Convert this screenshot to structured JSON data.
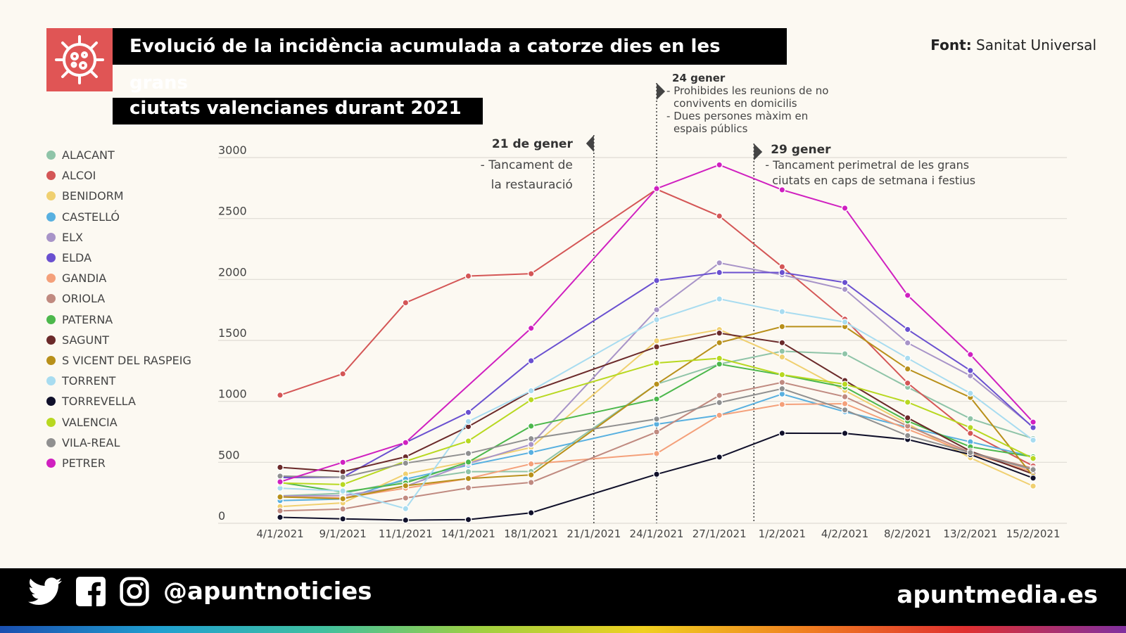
{
  "header": {
    "title_line1": "Evolució de la incidència acumulada a catorze dies en les grans",
    "title_line2": "ciutats valencianes durant 2021",
    "icon": "virus-icon",
    "accent": "#e05555"
  },
  "source": {
    "label": "Font:",
    "value": "Sanitat Universal"
  },
  "footer": {
    "handle": "@apuntnoticies",
    "site": "apuntmedia.es",
    "icons": [
      "twitter-icon",
      "facebook-icon",
      "instagram-icon"
    ]
  },
  "annotations": [
    {
      "date": "21/1/2021",
      "title": "21 de gener",
      "lines": [
        "- Tancament de",
        "la restauració"
      ]
    },
    {
      "date": "24/1/2021",
      "title": "24 gener",
      "lines": [
        "- Prohibides les reunions de no",
        "convivents en domicilis",
        "- Dues persones màxim en",
        "espais públics"
      ]
    },
    {
      "date": "29/1/2021",
      "title": "29 gener",
      "lines": [
        "- Tancament perimetral de les grans",
        "ciutats en caps de setmana i festius"
      ]
    }
  ],
  "chart_data": {
    "type": "line",
    "title": "Evolució de la incidència acumulada a catorze dies en les grans ciutats valencianes durant 2021",
    "categories": [
      "4/1/2021",
      "9/1/2021",
      "11/1/2021",
      "14/1/2021",
      "18/1/2021",
      "21/1/2021",
      "24/1/2021",
      "27/1/2021",
      "1/2/2021",
      "4/2/2021",
      "8/2/2021",
      "13/2/2021",
      "15/2/2021"
    ],
    "y_ticks": [
      "0",
      "500",
      "1000",
      "1500",
      "2000",
      "2500",
      "3000"
    ],
    "ylim": [
      0,
      3000
    ],
    "grid": true,
    "legend": "left",
    "series": [
      {
        "name": "ALACANT",
        "color": "#8fc4a8",
        "values": [
          225,
          246,
          350,
          423,
          425,
          null,
          1141,
          1306,
          1411,
          1390,
          1116,
          858,
          695
        ]
      },
      {
        "name": "ALCOI",
        "color": "#d45656",
        "values": [
          1051,
          1226,
          1809,
          2028,
          2047,
          null,
          2740,
          2520,
          2104,
          1674,
          1150,
          738,
          470
        ]
      },
      {
        "name": "BENIDORM",
        "color": "#f0d070",
        "values": [
          137,
          167,
          404,
          506,
          622,
          null,
          1496,
          1589,
          1364,
          1089,
          816,
          537,
          305
        ]
      },
      {
        "name": "CASTELLÓ",
        "color": "#58b0e0",
        "values": [
          186,
          199,
          363,
          476,
          581,
          null,
          813,
          886,
          1060,
          915,
          788,
          668,
          545
        ]
      },
      {
        "name": "ELX",
        "color": "#a894c8",
        "values": [
          224,
          227,
          303,
          490,
          647,
          null,
          1751,
          2136,
          2038,
          1919,
          1480,
          1210,
          790
        ]
      },
      {
        "name": "ELDA",
        "color": "#6a50d0",
        "values": [
          375,
          378,
          662,
          910,
          1333,
          null,
          1991,
          2057,
          2057,
          1975,
          1590,
          1253,
          785
        ]
      },
      {
        "name": "GANDIA",
        "color": "#f4a07a",
        "values": [
          216,
          209,
          288,
          367,
          487,
          null,
          572,
          886,
          975,
          981,
          771,
          573,
          423
        ]
      },
      {
        "name": "ORIOLA",
        "color": "#c08a80",
        "values": [
          102,
          117,
          207,
          290,
          335,
          null,
          749,
          1049,
          1156,
          1038,
          798,
          582,
          451
        ]
      },
      {
        "name": "PATERNA",
        "color": "#4cb84c",
        "values": [
          335,
          256,
          331,
          502,
          797,
          null,
          1019,
          1306,
          1217,
          1117,
          839,
          627,
          545
        ]
      },
      {
        "name": "SAGUNT",
        "color": "#6b2a2a",
        "values": [
          459,
          423,
          545,
          793,
          1083,
          null,
          1447,
          1560,
          1481,
          1171,
          865,
          592,
          404
        ]
      },
      {
        "name": "S VICENT DEL RASPEIG",
        "color": "#b8901a",
        "values": [
          216,
          201,
          308,
          367,
          397,
          null,
          1141,
          1481,
          1613,
          1613,
          1266,
          1032,
          386
        ]
      },
      {
        "name": "TORRENT",
        "color": "#a8dcf0",
        "values": [
          288,
          265,
          120,
          835,
          1087,
          null,
          1670,
          1840,
          1736,
          1651,
          1354,
          1066,
          682
        ]
      },
      {
        "name": "TORREVELLA",
        "color": "#10102a",
        "values": [
          49,
          36,
          26,
          30,
          86,
          null,
          402,
          543,
          739,
          738,
          687,
          564,
          371
        ]
      },
      {
        "name": "VALENCIA",
        "color": "#b8d820",
        "values": [
          330,
          318,
          509,
          675,
          1013,
          null,
          1315,
          1353,
          1219,
          1141,
          993,
          785,
          532
        ]
      },
      {
        "name": "VILA-REAL",
        "color": "#909090",
        "values": [
          387,
          378,
          493,
          573,
          694,
          null,
          855,
          990,
          1104,
          930,
          719,
          580,
          440
        ]
      },
      {
        "name": "PETRER",
        "color": "#d020c0",
        "values": [
          340,
          500,
          662,
          null,
          1600,
          null,
          2745,
          2940,
          2735,
          2585,
          1870,
          1384,
          830
        ]
      }
    ]
  }
}
